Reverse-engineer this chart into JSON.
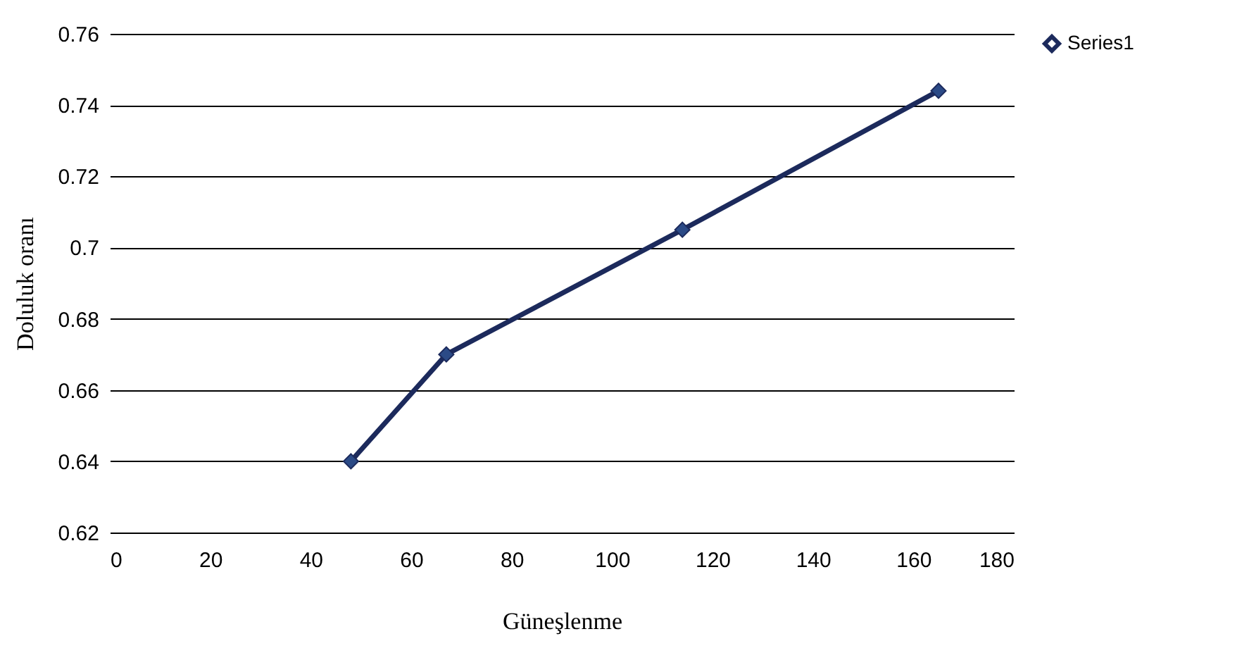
{
  "chart_data": {
    "type": "line",
    "xlabel": "Güneşlenme",
    "ylabel": "Doluluk oranı",
    "x": [
      48,
      67,
      114,
      165
    ],
    "series": [
      {
        "name": "Series1",
        "color": "#1c2a5c",
        "values": [
          0.64,
          0.67,
          0.705,
          0.744
        ]
      }
    ],
    "xlim": [
      0,
      180
    ],
    "xticks": [
      0,
      20,
      40,
      60,
      80,
      100,
      120,
      140,
      160,
      180
    ],
    "ylim": [
      0.62,
      0.76
    ],
    "yticks": [
      0.62,
      0.64,
      0.66,
      0.68,
      0.7,
      0.72,
      0.74,
      0.76
    ],
    "grid": "y",
    "legend": "right",
    "marker": "diamond",
    "line_style": "solid"
  }
}
